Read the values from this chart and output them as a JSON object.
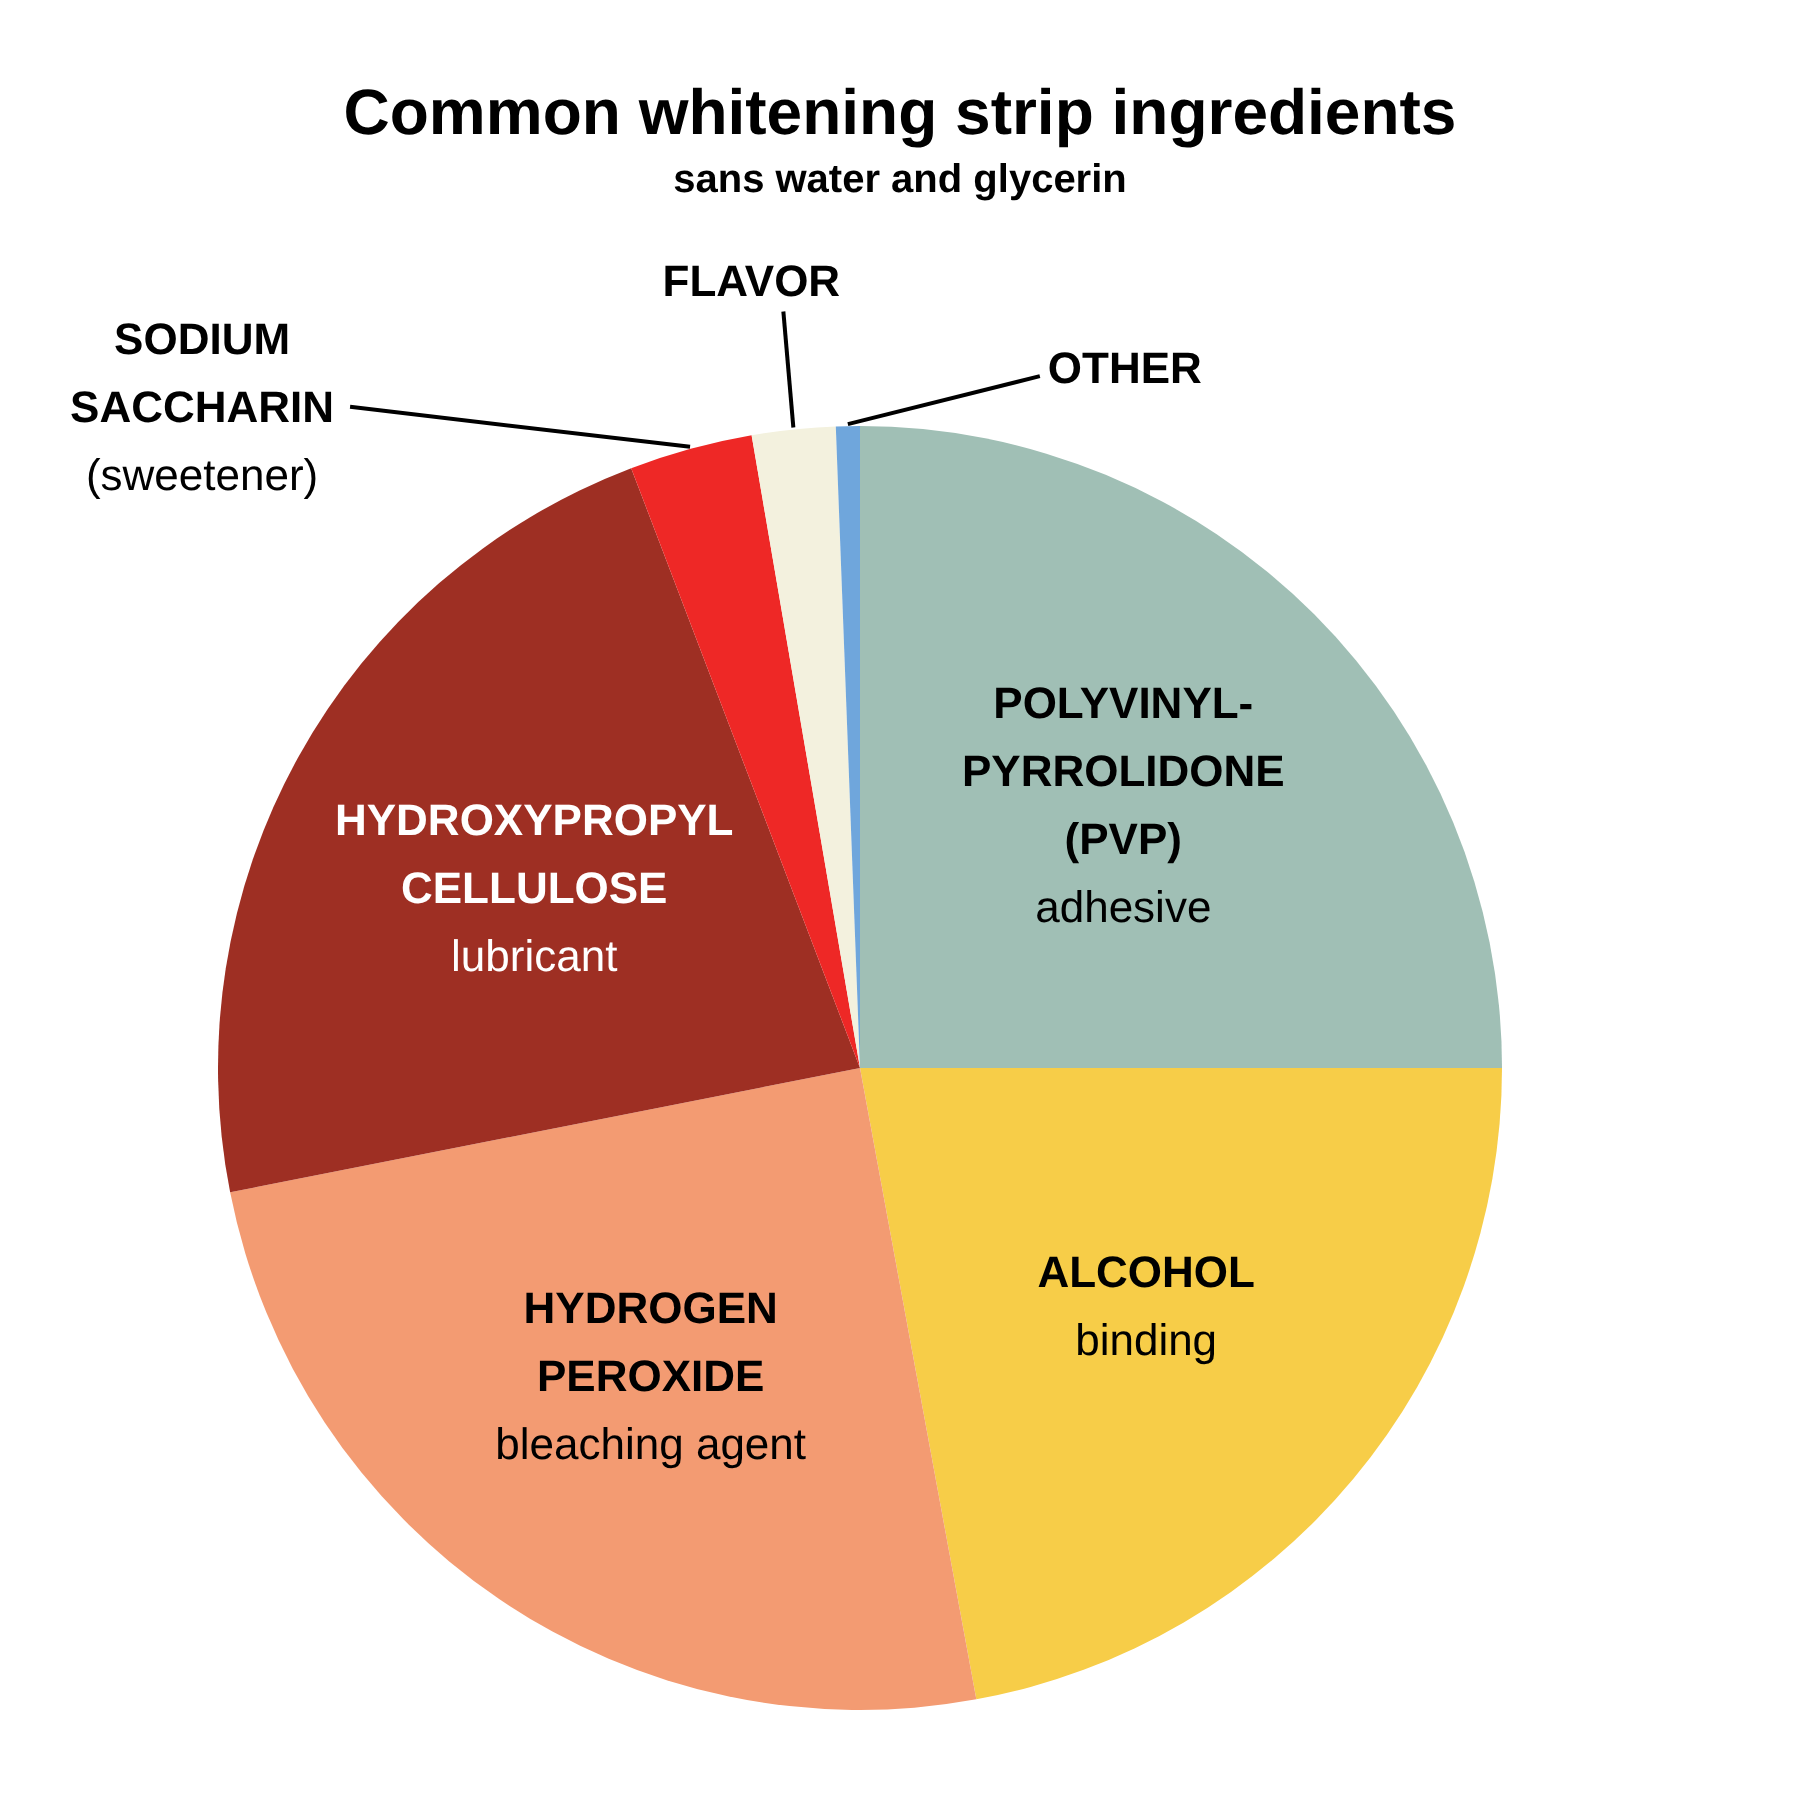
{
  "chart_data": {
    "type": "pie",
    "title": "Common whitening strip ingredients",
    "subtitle": "sans water and glycerin",
    "categories": [
      "POLYVINYL-\nPYRROLIDONE\n(PVP)\nadhesive",
      "ALCOHOL\nbinding",
      "HYDROGEN\nPEROXIDE\nbleaching agent",
      "HYDROXYPROPYL\nCELLULOSE\nlubricant",
      "SODIUM\nSACCHARIN\n(sweetener)",
      "FLAVOR",
      "OTHER"
    ],
    "values": [
      25.0,
      22.1,
      24.8,
      22.3,
      3.1,
      2.1,
      0.6
    ],
    "colors": [
      "#a0bfb5",
      "#f7cd48",
      "#f39b72",
      "#9e2f23",
      "#ee2826",
      "#f3f1de",
      "#6fa6dc"
    ]
  }
}
